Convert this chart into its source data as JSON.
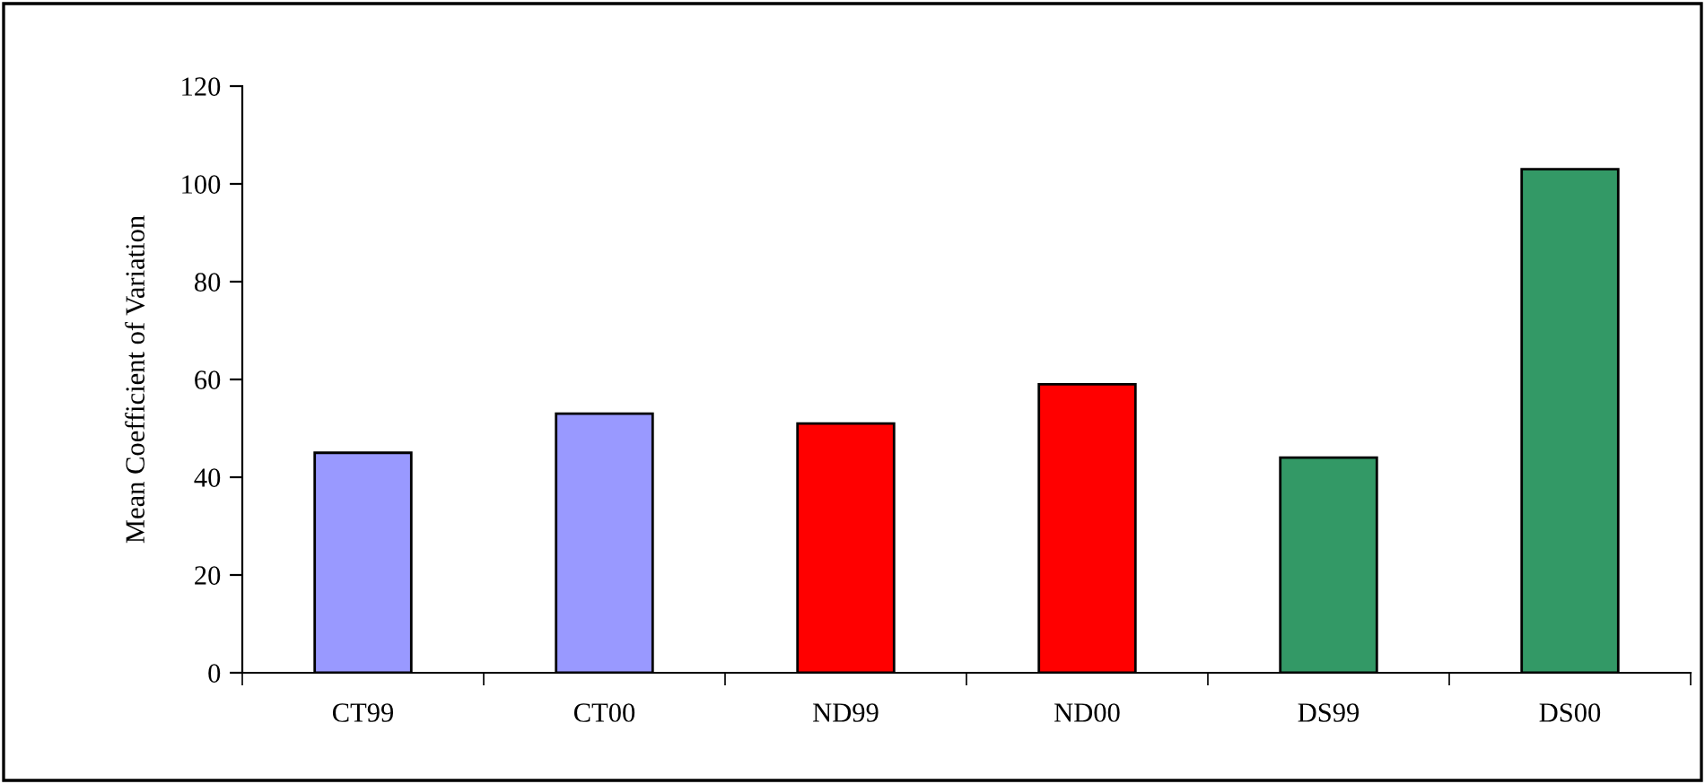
{
  "chart_data": {
    "type": "bar",
    "ylabel": "Mean Coefficient of Variation",
    "categories": [
      "CT99",
      "CT00",
      "ND99",
      "ND00",
      "DS99",
      "DS00"
    ],
    "values": [
      45,
      53,
      51,
      59,
      44,
      103
    ],
    "colors": [
      "#9999ff",
      "#9999ff",
      "#ff0000",
      "#ff0000",
      "#339966",
      "#339966"
    ],
    "ylim": [
      0,
      120
    ],
    "yticks": [
      0,
      20,
      40,
      60,
      80,
      100,
      120
    ],
    "grid": false,
    "legend": false
  }
}
